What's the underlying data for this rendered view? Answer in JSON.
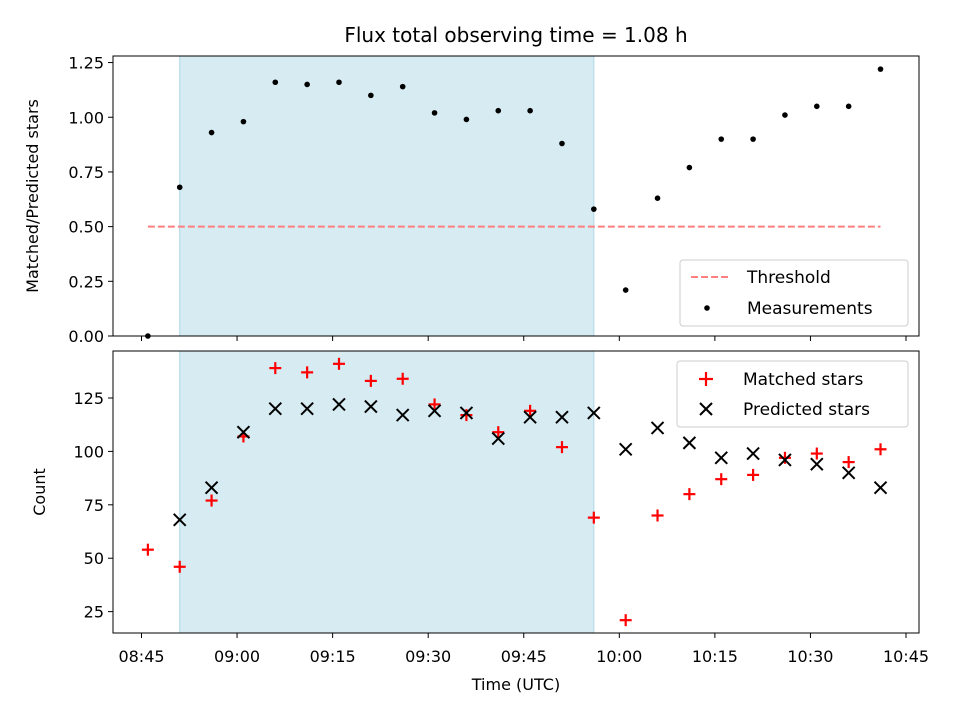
{
  "chart_data": [
    {
      "type": "scatter",
      "title": "Flux total observing time = 1.08 h",
      "xlabel": "",
      "ylabel": "Matched/Predicted stars",
      "ylim": [
        0.0,
        1.28
      ],
      "yticks": [
        "0.00",
        "0.25",
        "0.50",
        "0.75",
        "1.00",
        "1.25"
      ],
      "shaded_region": {
        "x_start": "08:51",
        "x_end": "09:56",
        "color": "#add8e6"
      },
      "legend_position": "lower right",
      "series": [
        {
          "name": "Threshold",
          "style": "dashed-line",
          "color": "#ff7f7f",
          "x": [
            "08:46",
            "10:41"
          ],
          "values": [
            0.5,
            0.5
          ]
        },
        {
          "name": "Measurements",
          "style": "dot",
          "color": "#000000",
          "x": [
            "08:46",
            "08:51",
            "08:56",
            "09:01",
            "09:06",
            "09:11",
            "09:16",
            "09:21",
            "09:26",
            "09:31",
            "09:36",
            "09:41",
            "09:46",
            "09:51",
            "09:56",
            "10:01",
            "10:06",
            "10:11",
            "10:16",
            "10:21",
            "10:26",
            "10:31",
            "10:36",
            "10:41"
          ],
          "values": [
            0.0,
            0.68,
            0.93,
            0.98,
            1.16,
            1.15,
            1.16,
            1.1,
            1.14,
            1.02,
            0.99,
            1.03,
            1.03,
            0.88,
            0.58,
            0.21,
            0.63,
            0.77,
            0.9,
            0.9,
            1.01,
            1.05,
            1.05,
            1.22
          ]
        }
      ]
    },
    {
      "type": "scatter",
      "title": "",
      "xlabel": "Time (UTC)",
      "ylabel": "Count",
      "ylim": [
        15,
        147
      ],
      "yticks": [
        "25",
        "50",
        "75",
        "100",
        "125"
      ],
      "xticks": [
        "08:45",
        "09:00",
        "09:15",
        "09:30",
        "09:45",
        "10:00",
        "10:15",
        "10:30",
        "10:45"
      ],
      "shaded_region": {
        "x_start": "08:51",
        "x_end": "09:56",
        "color": "#add8e6"
      },
      "legend_position": "upper right",
      "series": [
        {
          "name": "Matched stars",
          "style": "plus",
          "color": "#ff0000",
          "x": [
            "08:46",
            "08:51",
            "08:56",
            "09:01",
            "09:06",
            "09:11",
            "09:16",
            "09:21",
            "09:26",
            "09:31",
            "09:36",
            "09:41",
            "09:46",
            "09:51",
            "09:56",
            "10:01",
            "10:06",
            "10:11",
            "10:16",
            "10:21",
            "10:26",
            "10:31",
            "10:36",
            "10:41"
          ],
          "values": [
            54,
            46,
            77,
            107,
            139,
            137,
            141,
            133,
            134,
            122,
            117,
            109,
            119,
            102,
            69,
            21,
            70,
            80,
            87,
            89,
            97,
            99,
            95,
            101
          ]
        },
        {
          "name": "Predicted stars",
          "style": "x",
          "color": "#000000",
          "x": [
            "08:51",
            "08:56",
            "09:01",
            "09:06",
            "09:11",
            "09:16",
            "09:21",
            "09:26",
            "09:31",
            "09:36",
            "09:41",
            "09:46",
            "09:51",
            "09:56",
            "10:01",
            "10:06",
            "10:11",
            "10:16",
            "10:21",
            "10:26",
            "10:31",
            "10:36",
            "10:41"
          ],
          "values": [
            68,
            83,
            109,
            120,
            120,
            122,
            121,
            117,
            119,
            118,
            106,
            116,
            116,
            118,
            101,
            111,
            104,
            97,
            99,
            96,
            94,
            90,
            83
          ]
        }
      ]
    }
  ]
}
